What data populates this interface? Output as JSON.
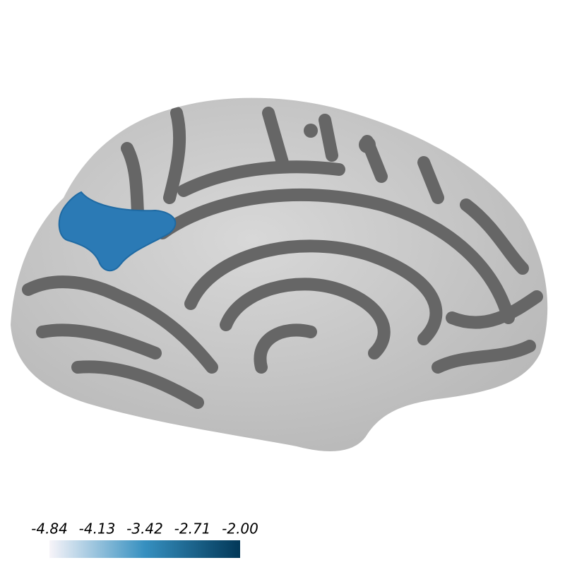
{
  "colorbar": {
    "range": [
      -4.84,
      -2
    ],
    "ticks": [
      -4.84,
      -4.13,
      -3.42,
      -2.71,
      {
        "value": -2,
        "label": "-2.00"
      }
    ],
    "colors": [
      "#f7f4f9",
      "#3690c0",
      "#023858"
    ]
  }
}
